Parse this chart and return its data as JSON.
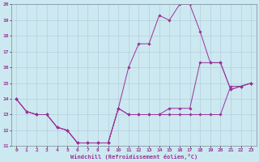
{
  "xlabel": "Windchill (Refroidissement éolien,°C)",
  "background_color": "#cce8f0",
  "grid_color": "#b0c8d8",
  "line_color": "#993399",
  "xlim": [
    -0.5,
    23.5
  ],
  "ylim": [
    11,
    20
  ],
  "xticks": [
    0,
    1,
    2,
    3,
    4,
    5,
    6,
    7,
    8,
    9,
    10,
    11,
    12,
    13,
    14,
    15,
    16,
    17,
    18,
    19,
    20,
    21,
    22,
    23
  ],
  "yticks": [
    11,
    12,
    13,
    14,
    15,
    16,
    17,
    18,
    19,
    20
  ],
  "lines": [
    {
      "x": [
        0,
        1,
        2,
        3,
        4,
        5,
        6,
        7,
        8,
        9,
        10,
        11,
        12,
        13,
        14,
        15,
        16,
        17,
        18,
        19,
        20,
        21,
        22,
        23
      ],
      "y": [
        14,
        13.2,
        13.0,
        13.0,
        12.2,
        12.0,
        11.2,
        11.2,
        11.2,
        11.2,
        13.4,
        16.0,
        17.5,
        17.5,
        19.3,
        19.0,
        20.0,
        20.0,
        18.3,
        16.3,
        16.3,
        14.6,
        14.8,
        15.0
      ]
    },
    {
      "x": [
        0,
        1,
        2,
        3,
        4,
        5,
        6,
        7,
        8,
        9,
        10,
        11,
        12,
        13,
        14,
        15,
        16,
        17,
        18,
        19,
        20,
        21,
        22,
        23
      ],
      "y": [
        14,
        13.2,
        13.0,
        13.0,
        12.2,
        12.0,
        11.2,
        11.2,
        11.2,
        11.2,
        13.4,
        13.0,
        13.0,
        13.0,
        13.0,
        13.4,
        13.4,
        13.4,
        16.3,
        16.3,
        16.3,
        14.6,
        14.8,
        15.0
      ]
    },
    {
      "x": [
        0,
        1,
        2,
        3,
        4,
        5,
        6,
        7,
        8,
        9,
        10,
        11,
        12,
        13,
        14,
        15,
        16,
        17,
        18,
        19,
        20,
        21,
        22,
        23
      ],
      "y": [
        14,
        13.2,
        13.0,
        13.0,
        12.2,
        12.0,
        11.2,
        11.2,
        11.2,
        11.2,
        13.4,
        13.0,
        13.0,
        13.0,
        13.0,
        13.0,
        13.0,
        13.0,
        13.0,
        13.0,
        13.0,
        14.8,
        14.8,
        15.0
      ]
    }
  ],
  "figsize": [
    3.2,
    2.0
  ],
  "dpi": 100
}
